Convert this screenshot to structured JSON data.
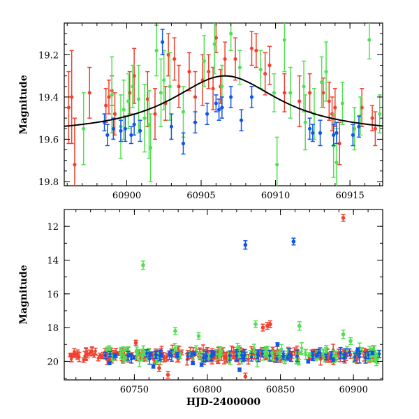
{
  "colors": {
    "red": "#f0402e",
    "green": "#52e052",
    "blue": "#1155e6",
    "model": "#000000"
  },
  "chart_data": [
    {
      "type": "scatter",
      "title": "",
      "xlabel": "",
      "ylabel": "Magnitude",
      "xlim": [
        60895.8,
        60917.2
      ],
      "ylim": [
        19.82,
        19.05
      ],
      "y_inverted": true,
      "xticks": [
        60900,
        60905,
        60910,
        60915
      ],
      "xtick_labels": [
        "60900",
        "60905",
        "60910",
        "60915"
      ],
      "yticks": [
        19.2,
        19.4,
        19.6,
        19.8
      ],
      "ytick_labels": [
        "19.2",
        "19.4",
        "19.6",
        "19.8"
      ],
      "grid": false,
      "model_curve": {
        "form": "lorentzian",
        "x0": 60906.6,
        "base": 19.58,
        "amplitude": 0.28,
        "width": 4.5
      },
      "series": [
        {
          "color": "red",
          "points": [
            [
              60896.1,
              19.45,
              0.17
            ],
            [
              60896.3,
              19.4,
              0.22
            ],
            [
              60896.5,
              19.72,
              0.22
            ],
            [
              60897.5,
              19.38,
              0.12
            ],
            [
              60898.6,
              19.44,
              0.08
            ],
            [
              60898.8,
              19.4,
              0.08
            ],
            [
              60899.0,
              19.37,
              0.07
            ],
            [
              60899.2,
              19.48,
              0.1
            ],
            [
              60900.2,
              19.38,
              0.1
            ],
            [
              60900.5,
              19.3,
              0.13
            ],
            [
              60901.4,
              19.41,
              0.13
            ],
            [
              60901.9,
              19.48,
              0.12
            ],
            [
              60902.6,
              19.43,
              0.08
            ],
            [
              60902.8,
              19.2,
              0.1
            ],
            [
              60903.2,
              19.22,
              0.1
            ],
            [
              60903.5,
              19.35,
              0.1
            ],
            [
              60904.2,
              19.28,
              0.09
            ],
            [
              60904.6,
              19.4,
              0.12
            ],
            [
              60905.1,
              19.32,
              0.12
            ],
            [
              60905.5,
              19.28,
              0.08
            ],
            [
              60905.8,
              19.36,
              0.1
            ],
            [
              60906.0,
              19.12,
              0.07
            ],
            [
              60906.3,
              19.35,
              0.08
            ],
            [
              60906.6,
              19.22,
              0.08
            ],
            [
              60907.3,
              19.22,
              0.1
            ],
            [
              60908.4,
              19.17,
              0.08
            ],
            [
              60908.7,
              19.18,
              0.08
            ],
            [
              60909.3,
              19.29,
              0.1
            ],
            [
              60909.6,
              19.25,
              0.09
            ],
            [
              60910.6,
              19.38,
              0.09
            ],
            [
              60911.6,
              19.42,
              0.12
            ],
            [
              60912.3,
              19.38,
              0.09
            ],
            [
              60913.2,
              19.38,
              0.07
            ],
            [
              60913.6,
              19.42,
              0.09
            ],
            [
              60913.8,
              19.48,
              0.08
            ],
            [
              60914.0,
              19.45,
              0.09
            ],
            [
              60914.3,
              19.62,
              0.1
            ],
            [
              60915.8,
              19.45,
              0.09
            ],
            [
              60916.5,
              19.5,
              0.06
            ],
            [
              60916.7,
              19.55,
              0.08
            ]
          ]
        },
        {
          "color": "green",
          "points": [
            [
              60897.1,
              19.55,
              0.17
            ],
            [
              60899.0,
              19.39,
              0.18
            ],
            [
              60899.6,
              19.54,
              0.15
            ],
            [
              60899.8,
              19.46,
              0.14
            ],
            [
              60900.1,
              19.42,
              0.13
            ],
            [
              60900.4,
              19.35,
              0.1
            ],
            [
              60900.8,
              19.41,
              0.16
            ],
            [
              60901.2,
              19.5,
              0.16
            ],
            [
              60901.5,
              19.53,
              0.16
            ],
            [
              60901.6,
              19.64,
              0.16
            ],
            [
              60902.0,
              19.18,
              0.12
            ],
            [
              60902.3,
              19.38,
              0.16
            ],
            [
              60902.5,
              19.32,
              0.14
            ],
            [
              60902.9,
              19.35,
              0.16
            ],
            [
              60903.8,
              19.47,
              0.12
            ],
            [
              60905.2,
              19.23,
              0.12
            ],
            [
              60905.9,
              19.15,
              0.14
            ],
            [
              60906.4,
              19.35,
              0.1
            ],
            [
              60907.0,
              19.1,
              0.08
            ],
            [
              60907.6,
              19.26,
              0.08
            ],
            [
              60909.0,
              19.27,
              0.09
            ],
            [
              60909.9,
              19.38,
              0.09
            ],
            [
              60910.1,
              19.72,
              0.13
            ],
            [
              60910.6,
              19.13,
              0.15
            ],
            [
              60911.0,
              19.38,
              0.12
            ],
            [
              60911.9,
              19.35,
              0.12
            ],
            [
              60912.0,
              19.52,
              0.13
            ],
            [
              60912.6,
              19.48,
              0.12
            ],
            [
              60913.1,
              19.33,
              0.12
            ],
            [
              60913.4,
              19.28,
              0.14
            ],
            [
              60913.9,
              19.63,
              0.15
            ],
            [
              60914.1,
              19.71,
              0.16
            ],
            [
              60914.5,
              19.43,
              0.1
            ],
            [
              60915.3,
              19.55,
              0.1
            ],
            [
              60915.7,
              19.49,
              0.09
            ],
            [
              60916.3,
              19.13,
              0.09
            ],
            [
              60917.0,
              19.48,
              0.09
            ]
          ]
        },
        {
          "color": "blue",
          "points": [
            [
              60898.5,
              19.52,
              0.04
            ],
            [
              60898.7,
              19.58,
              0.05
            ],
            [
              60899.1,
              19.55,
              0.05
            ],
            [
              60899.6,
              19.56,
              0.05
            ],
            [
              60899.9,
              19.55,
              0.06
            ],
            [
              60900.3,
              19.58,
              0.04
            ],
            [
              60900.5,
              19.53,
              0.05
            ],
            [
              60900.9,
              19.56,
              0.05
            ],
            [
              60902.4,
              19.14,
              0.06
            ],
            [
              60903.0,
              19.54,
              0.06
            ],
            [
              60903.8,
              19.62,
              0.05
            ],
            [
              60904.6,
              19.52,
              0.05
            ],
            [
              60905.4,
              19.48,
              0.05
            ],
            [
              60906.0,
              19.43,
              0.04
            ],
            [
              60906.2,
              19.46,
              0.05
            ],
            [
              60906.4,
              19.45,
              0.05
            ],
            [
              60907.0,
              19.4,
              0.05
            ],
            [
              60907.7,
              19.51,
              0.05
            ],
            [
              60908.4,
              19.4,
              0.05
            ],
            [
              60912.3,
              19.55,
              0.05
            ],
            [
              60912.5,
              19.57,
              0.04
            ],
            [
              60913.0,
              19.57,
              0.06
            ],
            [
              60913.9,
              19.58,
              0.05
            ],
            [
              60914.1,
              19.57,
              0.05
            ],
            [
              60915.2,
              19.58,
              0.05
            ],
            [
              60915.6,
              19.54,
              0.05
            ]
          ]
        }
      ]
    },
    {
      "type": "scatter",
      "title": "",
      "xlabel": "HJD-2400000",
      "ylabel": "Magnitude",
      "xlim": [
        60702,
        60920
      ],
      "ylim": [
        21.1,
        11.0
      ],
      "y_inverted": true,
      "xticks": [
        60750,
        60800,
        60850,
        60900
      ],
      "xtick_labels": [
        "60750",
        "60800",
        "60850",
        "60900"
      ],
      "yticks": [
        12,
        14,
        16,
        18,
        20
      ],
      "ytick_labels": [
        "12",
        "14",
        "16",
        "18",
        "20"
      ],
      "grid": false,
      "baseline_magnitude": 19.65,
      "outliers": [
        {
          "color": "green",
          "x": 60756,
          "y": 14.3,
          "err": 0.25
        },
        {
          "color": "blue",
          "x": 60826,
          "y": 13.1,
          "err": 0.25
        },
        {
          "color": "blue",
          "x": 60859,
          "y": 12.9,
          "err": 0.2
        },
        {
          "color": "red",
          "x": 60893,
          "y": 11.5,
          "err": 0.2
        },
        {
          "color": "green",
          "x": 60778,
          "y": 18.2,
          "err": 0.2
        },
        {
          "color": "green",
          "x": 60794,
          "y": 18.5,
          "err": 0.2
        },
        {
          "color": "green",
          "x": 60833,
          "y": 17.8,
          "err": 0.2
        },
        {
          "color": "red",
          "x": 60838,
          "y": 18.0,
          "err": 0.2
        },
        {
          "color": "red",
          "x": 60841,
          "y": 17.9,
          "err": 0.2
        },
        {
          "color": "red",
          "x": 60843,
          "y": 17.8,
          "err": 0.2
        },
        {
          "color": "green",
          "x": 60863,
          "y": 17.9,
          "err": 0.25
        },
        {
          "color": "green",
          "x": 60893,
          "y": 18.4,
          "err": 0.25
        },
        {
          "color": "red",
          "x": 60751,
          "y": 18.9,
          "err": 0.15
        },
        {
          "color": "green",
          "x": 60898,
          "y": 18.8,
          "err": 0.2
        },
        {
          "color": "blue",
          "x": 60733,
          "y": 20.1,
          "err": 0.1
        },
        {
          "color": "blue",
          "x": 60763,
          "y": 20.3,
          "err": 0.1
        },
        {
          "color": "red",
          "x": 60767,
          "y": 20.4,
          "err": 0.2
        },
        {
          "color": "red",
          "x": 60773,
          "y": 20.8,
          "err": 0.2
        },
        {
          "color": "blue",
          "x": 60790,
          "y": 20.1,
          "err": 0.1
        },
        {
          "color": "blue",
          "x": 60796,
          "y": 20.2,
          "err": 0.1
        },
        {
          "color": "blue",
          "x": 60822,
          "y": 20.5,
          "err": 0.1
        },
        {
          "color": "red",
          "x": 60826,
          "y": 20.9,
          "err": 0.2
        },
        {
          "color": "blue",
          "x": 60848,
          "y": 19.0,
          "err": 0.1
        },
        {
          "color": "blue",
          "x": 60869,
          "y": 20.0,
          "err": 0.1
        },
        {
          "color": "blue",
          "x": 60886,
          "y": 19.9,
          "err": 0.1
        },
        {
          "color": "blue",
          "x": 60903,
          "y": 19.3,
          "err": 0.1
        },
        {
          "color": "blue",
          "x": 60913,
          "y": 19.5,
          "err": 0.1
        }
      ]
    }
  ]
}
